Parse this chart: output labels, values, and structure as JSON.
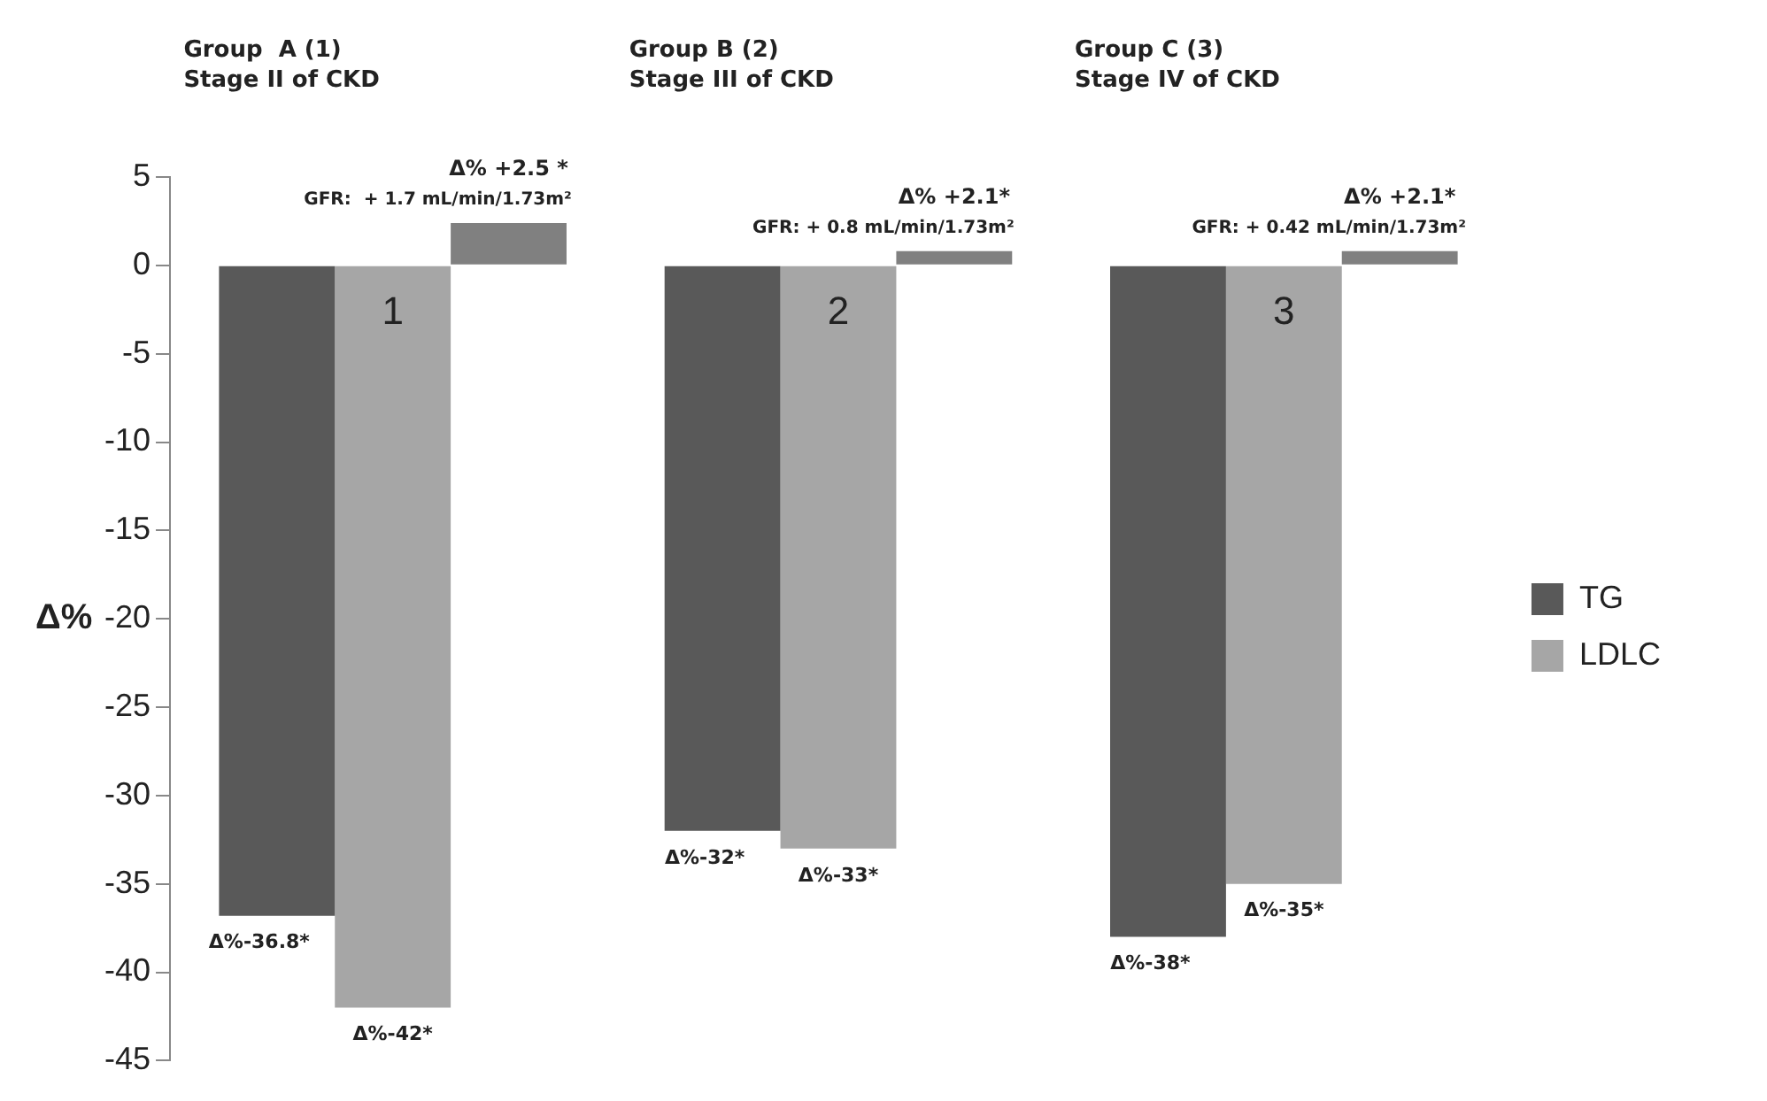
{
  "chart_data": {
    "type": "bar",
    "ylabel": "Δ%",
    "categories": [
      "1",
      "2",
      "3"
    ],
    "series": [
      {
        "name": "TG",
        "color": "#595959",
        "values": [
          -36.8,
          -32,
          -38
        ],
        "value_labels": [
          "Δ%-36.8*",
          "Δ%-32*",
          "Δ%-38*"
        ]
      },
      {
        "name": "LDLC",
        "color": "#a6a6a6",
        "values": [
          -42,
          -33,
          -35
        ],
        "value_labels": [
          "Δ%-42*",
          "Δ%-33*",
          "Δ%-35*"
        ]
      },
      {
        "color": "#808080",
        "values": [
          2.4,
          0.8,
          0.8
        ]
      }
    ],
    "annotations": [
      "Group  A (1)\nStage II of CKD",
      "Group B (2)\nStage III of CKD",
      "Group C (3)\nStage IV of CKD",
      "Δ% +2.5 *\nGFR:  + 1.7 mL/min/1.73m²",
      "Δ% +2.1*\nGFR: + 0.8 mL/min/1.73m²",
      "Δ% +2.1*\nGFR: + 0.42 mL/min/1.73m²"
    ],
    "ylim": [
      -45,
      5
    ],
    "yticks": [
      5,
      0,
      -5,
      -10,
      -15,
      -20,
      -25,
      -30,
      -35,
      -40,
      -45
    ],
    "grid": false,
    "legend": "right"
  }
}
